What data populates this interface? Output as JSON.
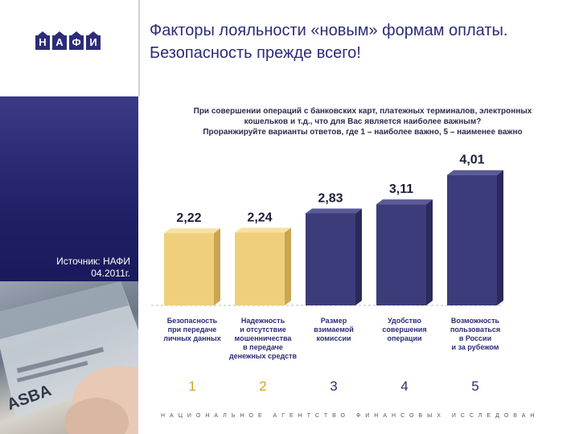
{
  "logo": {
    "letters": [
      "Н",
      "А",
      "Ф",
      "И"
    ]
  },
  "header": {
    "title": "Факторы лояльности «новым» формам оплаты. Безопасность прежде всего!"
  },
  "sidebar": {
    "source_line1": "Источник: НАФИ",
    "source_line2": "04.2011г."
  },
  "question": {
    "line1": "При совершении операций с банковских карт, платежных терминалов, электронных",
    "line2": "кошельков и т.д., что для Вас является наиболее важным?",
    "line3": "Проранжируйте варианты ответов, где 1 – наиболее важно, 5 – наименее важно"
  },
  "footer": {
    "text": "НАЦИОНАЛЬНОЕ АГЕНТСТВО ФИНАНСОВЫХ ИССЛЕДОВАНИЙ"
  },
  "colors": {
    "accent_yellow": "#f0cf7c",
    "accent_blue": "#3c3c7a",
    "rank_yellow": "#d8a21c",
    "rank_blue": "#2c2c78"
  },
  "chart_data": {
    "type": "bar",
    "categories": [
      "Безопасность при передаче личных данных",
      "Надежность и отсутствие мошенничества в передаче денежных средств",
      "Размер взимаемой комиссии",
      "Удобство совершения операции",
      "Возможность пользоваться в России и за рубежом"
    ],
    "category_lines": [
      [
        "Безопасность",
        "при передаче",
        "личных данных"
      ],
      [
        "Надежность",
        "и отсутствие",
        "мошенничества",
        "в передаче",
        "денежных средств"
      ],
      [
        "Размер",
        "взимаемой",
        "комиссии"
      ],
      [
        "Удобство",
        "совершения",
        "операции"
      ],
      [
        "Возможность",
        "пользоваться",
        "в России",
        "и за рубежом"
      ]
    ],
    "values": [
      2.22,
      2.24,
      2.83,
      3.11,
      4.01
    ],
    "value_labels": [
      "2,22",
      "2,24",
      "2,83",
      "3,11",
      "4,01"
    ],
    "ranks": [
      "1",
      "2",
      "3",
      "4",
      "5"
    ],
    "highlighted": [
      true,
      true,
      false,
      false,
      false
    ],
    "ylim": [
      0,
      4.2
    ],
    "grid": false,
    "title": "",
    "xlabel": "",
    "ylabel": ""
  }
}
